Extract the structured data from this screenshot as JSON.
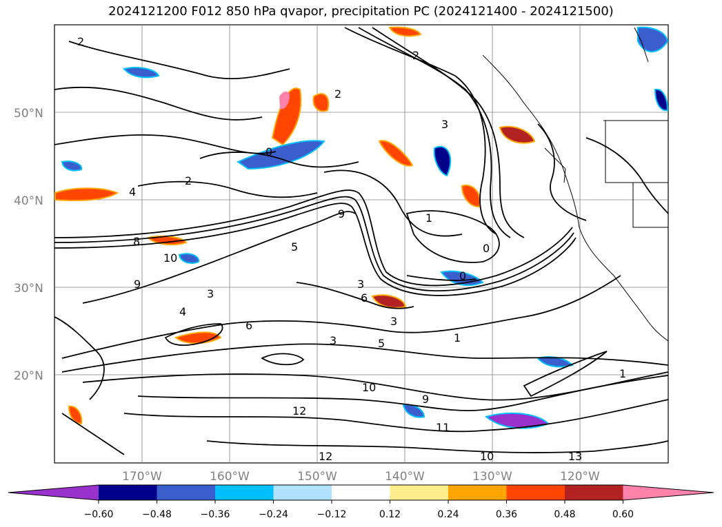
{
  "title": "2024121200 F012 850 hPa qvapor, precipitation PC (2024121400 - 2024121500)",
  "map": {
    "lat_labels": [
      "50°N",
      "40°N",
      "30°N",
      "20°N"
    ],
    "lon_labels": [
      "170°W",
      "160°W",
      "150°W",
      "140°W",
      "130°W",
      "120°W"
    ],
    "contour_levels": [
      "2",
      "3",
      "4",
      "8",
      "9",
      "10",
      "1",
      "0",
      "5",
      "6",
      "11",
      "12",
      "13"
    ],
    "coastline_color": "#000000",
    "grid_color": "#808080"
  },
  "colorbar": {
    "colors": [
      "#9932cc",
      "#00008b",
      "#3a5fcd",
      "#00bfff",
      "#b0e2ff",
      "#ffffff",
      "#ffec8b",
      "#ffa500",
      "#ff4500",
      "#b22222",
      "#ff82ab"
    ],
    "tick_labels": [
      "−0.60",
      "−0.48",
      "−0.36",
      "−0.24",
      "−0.12",
      "0.12",
      "0.24",
      "0.36",
      "0.48",
      "0.60"
    ]
  }
}
